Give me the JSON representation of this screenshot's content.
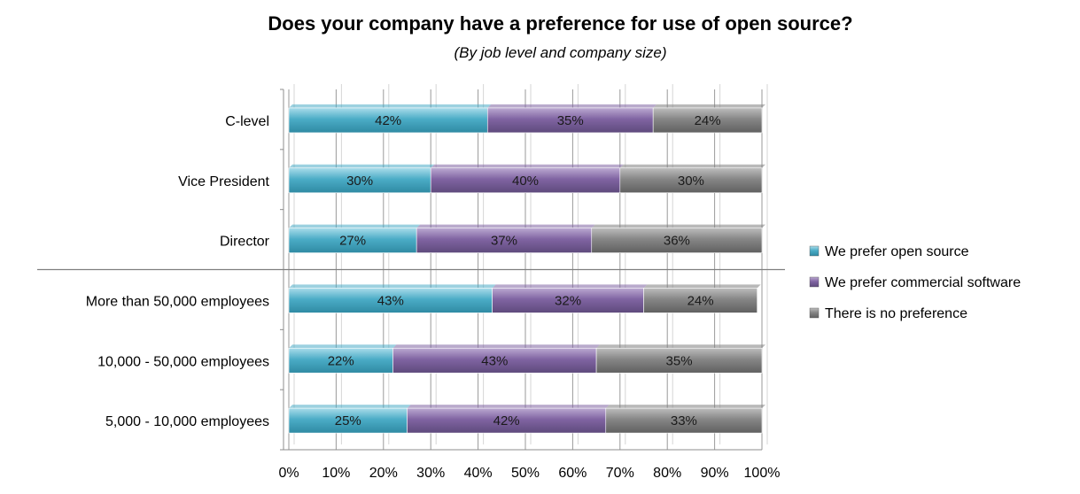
{
  "chart_data": {
    "type": "bar",
    "orientation": "horizontal",
    "stacked": true,
    "title": "Does your company have a preference for use of open source?",
    "subtitle": "(By job level and company size)",
    "categories": [
      "C-level",
      "Vice President",
      "Director",
      "More than 50,000 employees",
      "10,000 - 50,000 employees",
      "5,000 - 10,000 employees"
    ],
    "series": [
      {
        "name": "We prefer open source",
        "values": [
          42,
          30,
          27,
          43,
          22,
          25
        ],
        "labels": [
          "42%",
          "30%",
          "27%",
          "43%",
          "22%",
          "25%"
        ],
        "color": "#4BACC6"
      },
      {
        "name": "We prefer commercial software",
        "values": [
          35,
          40,
          37,
          32,
          43,
          42
        ],
        "labels": [
          "35%",
          "40%",
          "37%",
          "32%",
          "43%",
          "42%"
        ],
        "color": "#8064A2"
      },
      {
        "name": "There is no preference",
        "values": [
          24,
          30,
          36,
          24,
          35,
          33
        ],
        "labels": [
          "24%",
          "30%",
          "36%",
          "24%",
          "35%",
          "33%"
        ],
        "color": "#7F7F7F"
      }
    ],
    "x_ticks": [
      "0%",
      "10%",
      "20%",
      "30%",
      "40%",
      "50%",
      "60%",
      "70%",
      "80%",
      "90%",
      "100%"
    ],
    "xlim": [
      0,
      100
    ],
    "grid": true,
    "legend": "right"
  }
}
